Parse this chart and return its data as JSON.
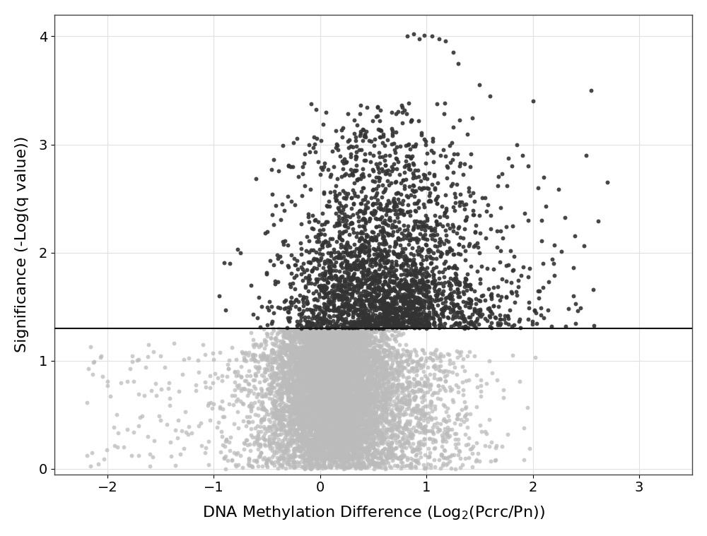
{
  "xlabel": "DNA Methylation Difference (Log$_2$(Pcrc/Pn))",
  "ylabel": "Significance (-Log(q value))",
  "xlim": [
    -2.5,
    3.5
  ],
  "ylim": [
    -0.05,
    4.2
  ],
  "xticks": [
    -2,
    -1,
    0,
    1,
    2,
    3
  ],
  "yticks": [
    0,
    1,
    2,
    3,
    4
  ],
  "threshold_y": 1.301,
  "color_above": "#333333",
  "color_below": "#bbbbbb",
  "background_color": "#ffffff",
  "grid_color": "#e0e0e0",
  "marker_size": 18,
  "alpha_above": 0.9,
  "alpha_below": 0.75,
  "seed": 42,
  "xlabel_fontsize": 16,
  "ylabel_fontsize": 16,
  "tick_fontsize": 14,
  "line_color": "#111111",
  "line_width": 1.5
}
